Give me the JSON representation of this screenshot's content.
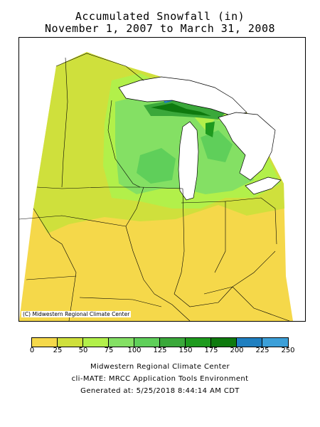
{
  "title": {
    "line1": "Accumulated Snowfall (in)",
    "line2": "November 1, 2007 to March 31, 2008"
  },
  "map": {
    "credit": "(C) Midwestern Regional Climate Center",
    "lake_color": "#ffffff",
    "water_stroke": "#000000"
  },
  "legend": {
    "colors": [
      "#f5d84a",
      "#cfe03c",
      "#b2f04a",
      "#84e064",
      "#5fcf5a",
      "#3aa83a",
      "#1e9a1e",
      "#0e7a0e",
      "#1f7fc0",
      "#3c9fd8",
      "#6fbff0"
    ],
    "ticks": [
      "0",
      "25",
      "50",
      "75",
      "100",
      "125",
      "150",
      "175",
      "200",
      "225",
      "250"
    ]
  },
  "footer": {
    "line1": "Midwestern Regional Climate Center",
    "line2": "cli-MATE: MRCC Application Tools Environment",
    "line3": "Generated at: 5/25/2018 8:44:14 AM CDT"
  }
}
